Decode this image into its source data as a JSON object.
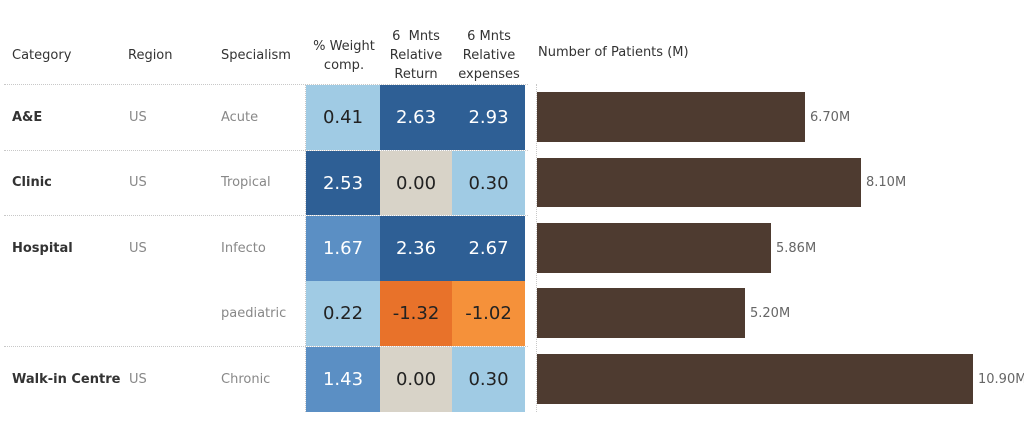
{
  "headers": {
    "category": "Category",
    "region": "Region",
    "specialism": "Specialism",
    "weight": [
      "% Weight",
      "comp."
    ],
    "return": [
      "6  Mnts",
      "Relative",
      "Return"
    ],
    "expenses": [
      "6 Mnts",
      "Relative",
      "expenses"
    ],
    "patients": "Number of Patients (M)"
  },
  "rows": [
    {
      "category": "A&E",
      "region": "US",
      "specialism": "Acute",
      "weight": "0.41",
      "return": "2.63",
      "expenses": "2.93",
      "patients_label": "6.70M"
    },
    {
      "category": "Clinic",
      "region": "US",
      "specialism": "Tropical",
      "weight": "2.53",
      "return": "0.00",
      "expenses": "0.30",
      "patients_label": "8.10M"
    },
    {
      "category": "Hospital",
      "region": "US",
      "specialism": "Infecto",
      "weight": "1.67",
      "return": "2.36",
      "expenses": "2.67",
      "patients_label": "5.86M"
    },
    {
      "category": "",
      "region": "",
      "specialism": "paediatric",
      "weight": "0.22",
      "return": "-1.32",
      "expenses": "-1.02",
      "patients_label": "5.20M"
    },
    {
      "category": "Walk-in Centre",
      "region": "US",
      "specialism": "Chronic",
      "weight": "1.43",
      "return": "0.00",
      "expenses": "0.30",
      "patients_label": "10.90M"
    }
  ],
  "colors": {
    "dark_blue": "#2e5f95",
    "mid_blue": "#5b8fc4",
    "light_blue": "#a0cbe4",
    "neutral": "#d8d3c8",
    "dark_orange": "#e8722a",
    "light_orange": "#f5913a",
    "bar": "#4e3b30"
  },
  "chart_data": {
    "type": "bar",
    "orientation": "horizontal",
    "title": "Number of Patients (M)",
    "categories": [
      "Acute",
      "Tropical",
      "Infecto",
      "paediatric",
      "Chronic"
    ],
    "values": [
      6.7,
      8.1,
      5.86,
      5.2,
      10.9
    ],
    "xlim": [
      0,
      12
    ],
    "table": {
      "columns": [
        "% Weight comp.",
        "6  Mnts Relative Return",
        "6 Mnts Relative expenses"
      ],
      "values": [
        [
          0.41,
          2.63,
          2.93
        ],
        [
          2.53,
          0.0,
          0.3
        ],
        [
          1.67,
          2.36,
          2.67
        ],
        [
          0.22,
          -1.32,
          -1.02
        ],
        [
          1.43,
          0.0,
          0.3
        ]
      ]
    }
  }
}
